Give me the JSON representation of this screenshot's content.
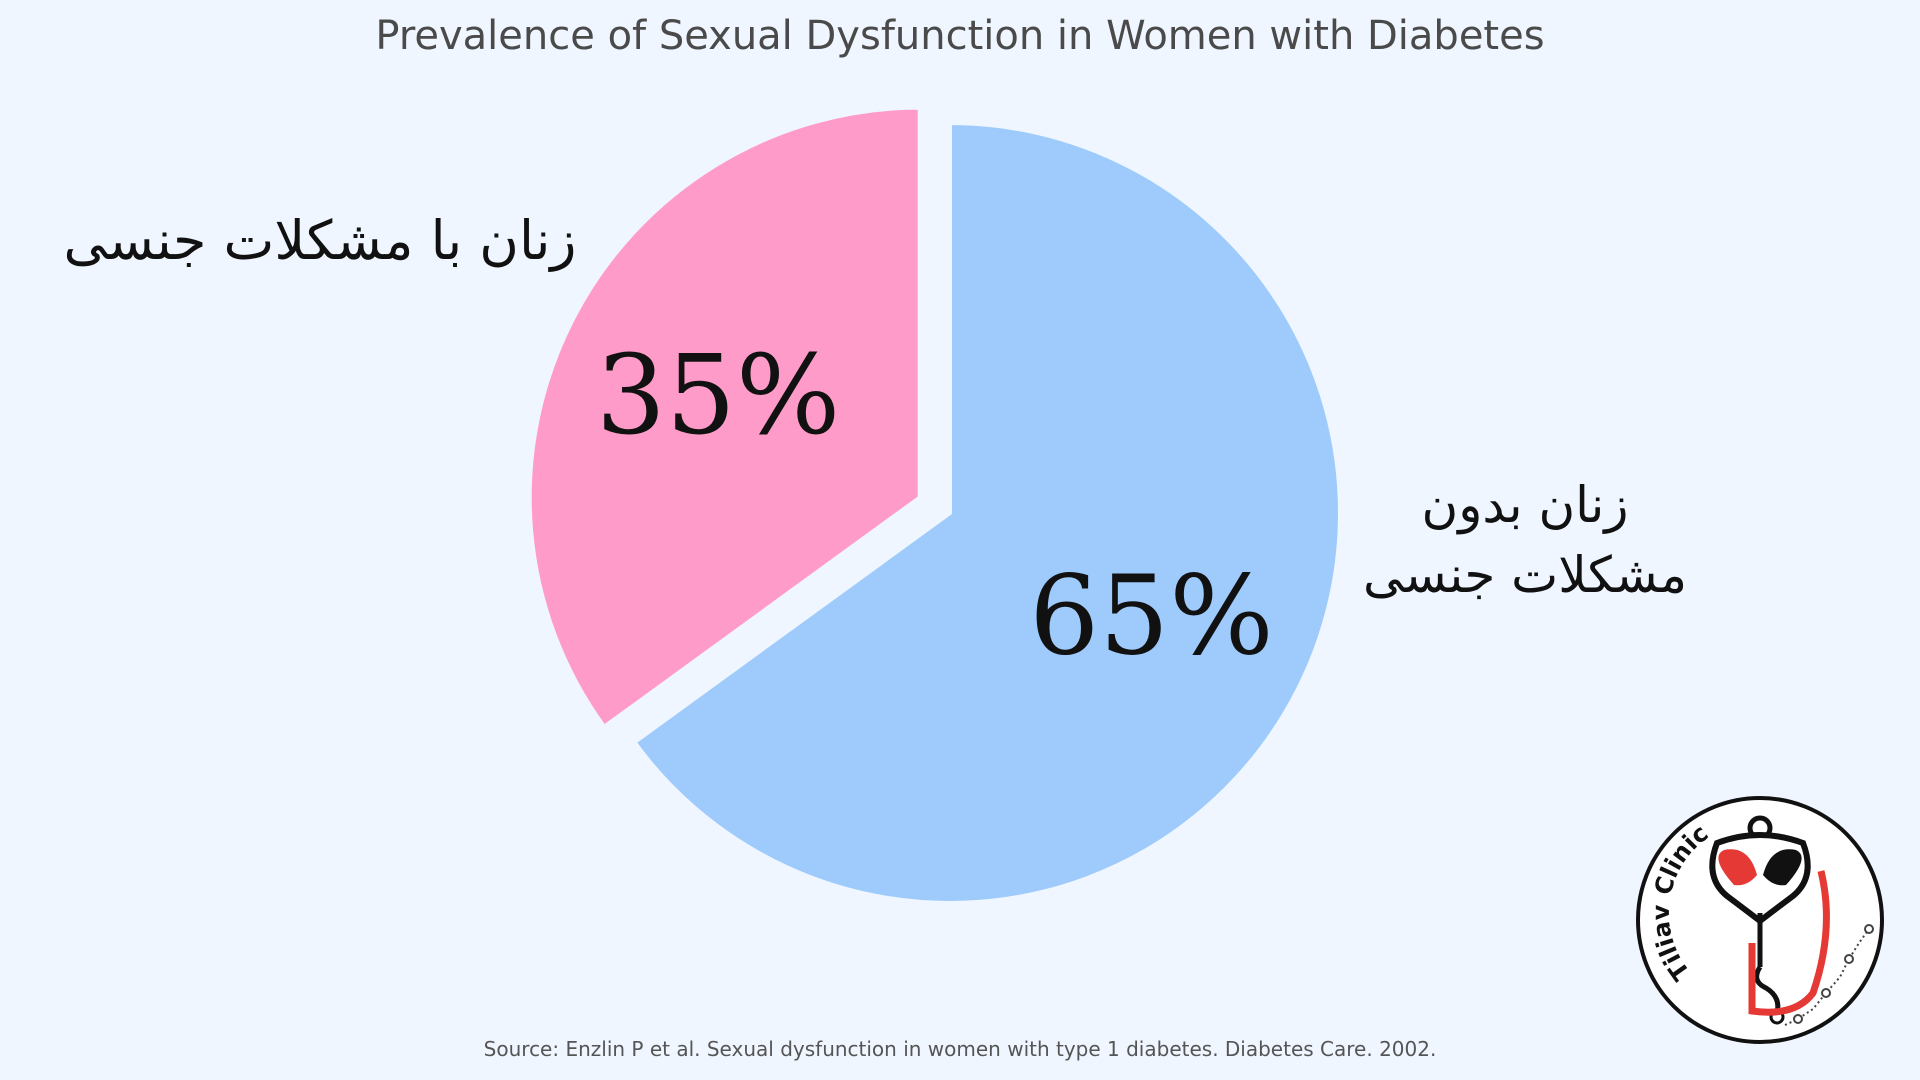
{
  "title": "Prevalence of Sexual Dysfunction in Women with Diabetes",
  "source": "Source: Enzlin P et al. Sexual dysfunction in women with type 1 diabetes. Diabetes Care. 2002.",
  "logo": {
    "text": "Tiliav Clinic",
    "icon": "heart-leaf-stethoscope-logo"
  },
  "chart_data": {
    "type": "pie",
    "title": "Prevalence of Sexual Dysfunction in Women with Diabetes",
    "start_angle": "12 o'clock",
    "direction": "counterclockwise",
    "exploded": "with",
    "slices": [
      {
        "name": "with",
        "label": "زنان با مشکلات جنسی",
        "value": 35,
        "value_label": "35%",
        "color": "#ff9bc8",
        "exploded": true
      },
      {
        "name": "without",
        "label": "زنان بدون\nمشکلات جنسی",
        "value": 65,
        "value_label": "65%",
        "color": "#9ecbfb",
        "exploded": false
      }
    ]
  }
}
